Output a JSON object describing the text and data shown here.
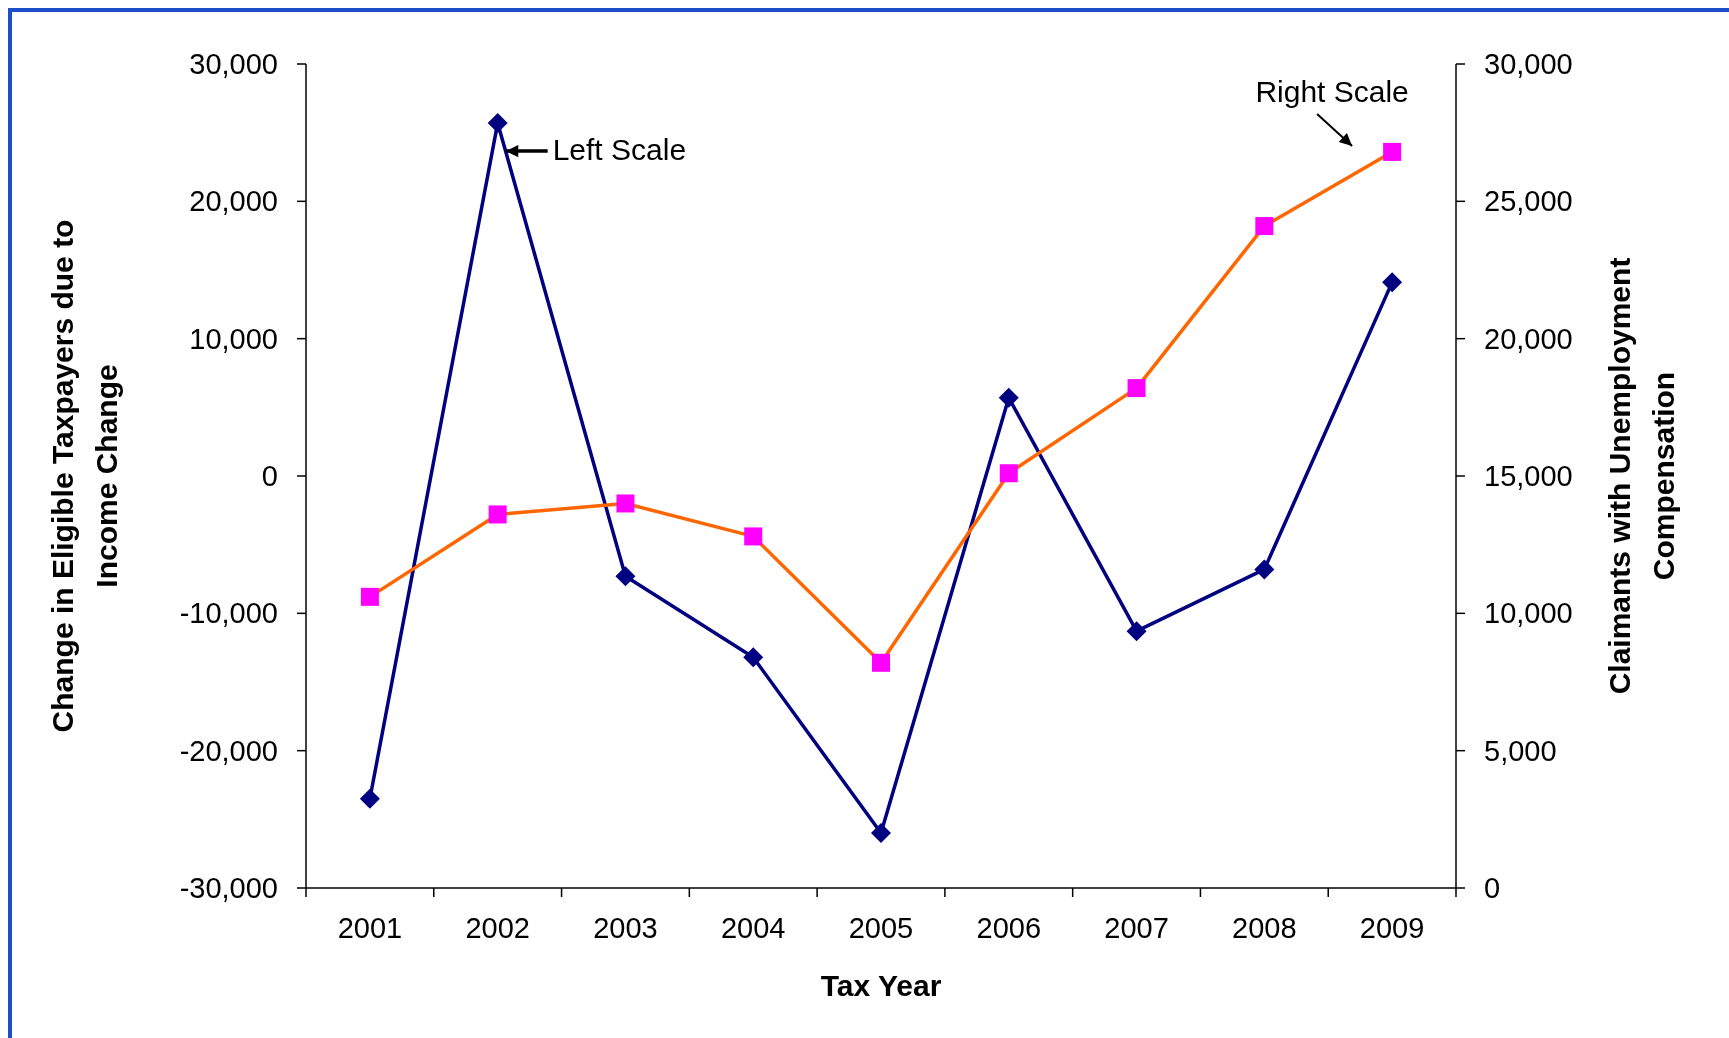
{
  "chart_data": {
    "type": "line",
    "xlabel": "Tax Year",
    "ylabel": "Change in Eligible Taxpayers due to Income Change",
    "y2label": "Claimants with Unemployment Compensation",
    "categories": [
      "2001",
      "2002",
      "2003",
      "2004",
      "2005",
      "2006",
      "2007",
      "2008",
      "2009"
    ],
    "series": [
      {
        "color": "#000080",
        "marker": "diamond",
        "values": [
          -23500,
          25700,
          -7300,
          -13200,
          -26000,
          5700,
          -11300,
          -6800,
          14100
        ]
      },
      {
        "color": "#ff6600",
        "colors": [
          "#ff00ff",
          "#ff00ff",
          "#ff00ff",
          "#ff00ff",
          "#ff00ff",
          "#ff00ff",
          "#ff00ff",
          "#ff00ff",
          "#ff00ff"
        ],
        "marker": "square",
        "axis": "y2",
        "values": [
          10600,
          13600,
          14000,
          12800,
          8200,
          15100,
          18200,
          24100,
          26800
        ]
      }
    ],
    "ylim": [
      -30000,
      30000
    ],
    "yticks": [
      {
        "value": -30000,
        "label": "-30,000"
      },
      {
        "value": -20000,
        "label": "-20,000"
      },
      {
        "value": -10000,
        "label": "-10,000"
      },
      0,
      {
        "value": 10000,
        "label": "10,000"
      },
      {
        "value": 20000,
        "label": "20,000"
      },
      {
        "value": 30000,
        "label": "30,000"
      }
    ],
    "y2lim": [
      0,
      30000
    ],
    "y2ticks": [
      0,
      {
        "value": 5000,
        "label": "5,000"
      },
      {
        "value": 10000,
        "label": "10,000"
      },
      {
        "value": 15000,
        "label": "15,000"
      },
      {
        "value": 20000,
        "label": "20,000"
      },
      {
        "value": 25000,
        "label": "25,000"
      },
      {
        "value": 30000,
        "label": "30,000"
      }
    ],
    "grid": false,
    "line_style": "solid",
    "annotations": [
      {
        "text": "Left Scale",
        "x": "2002",
        "y": 25700
      },
      "Right Scale"
    ]
  }
}
